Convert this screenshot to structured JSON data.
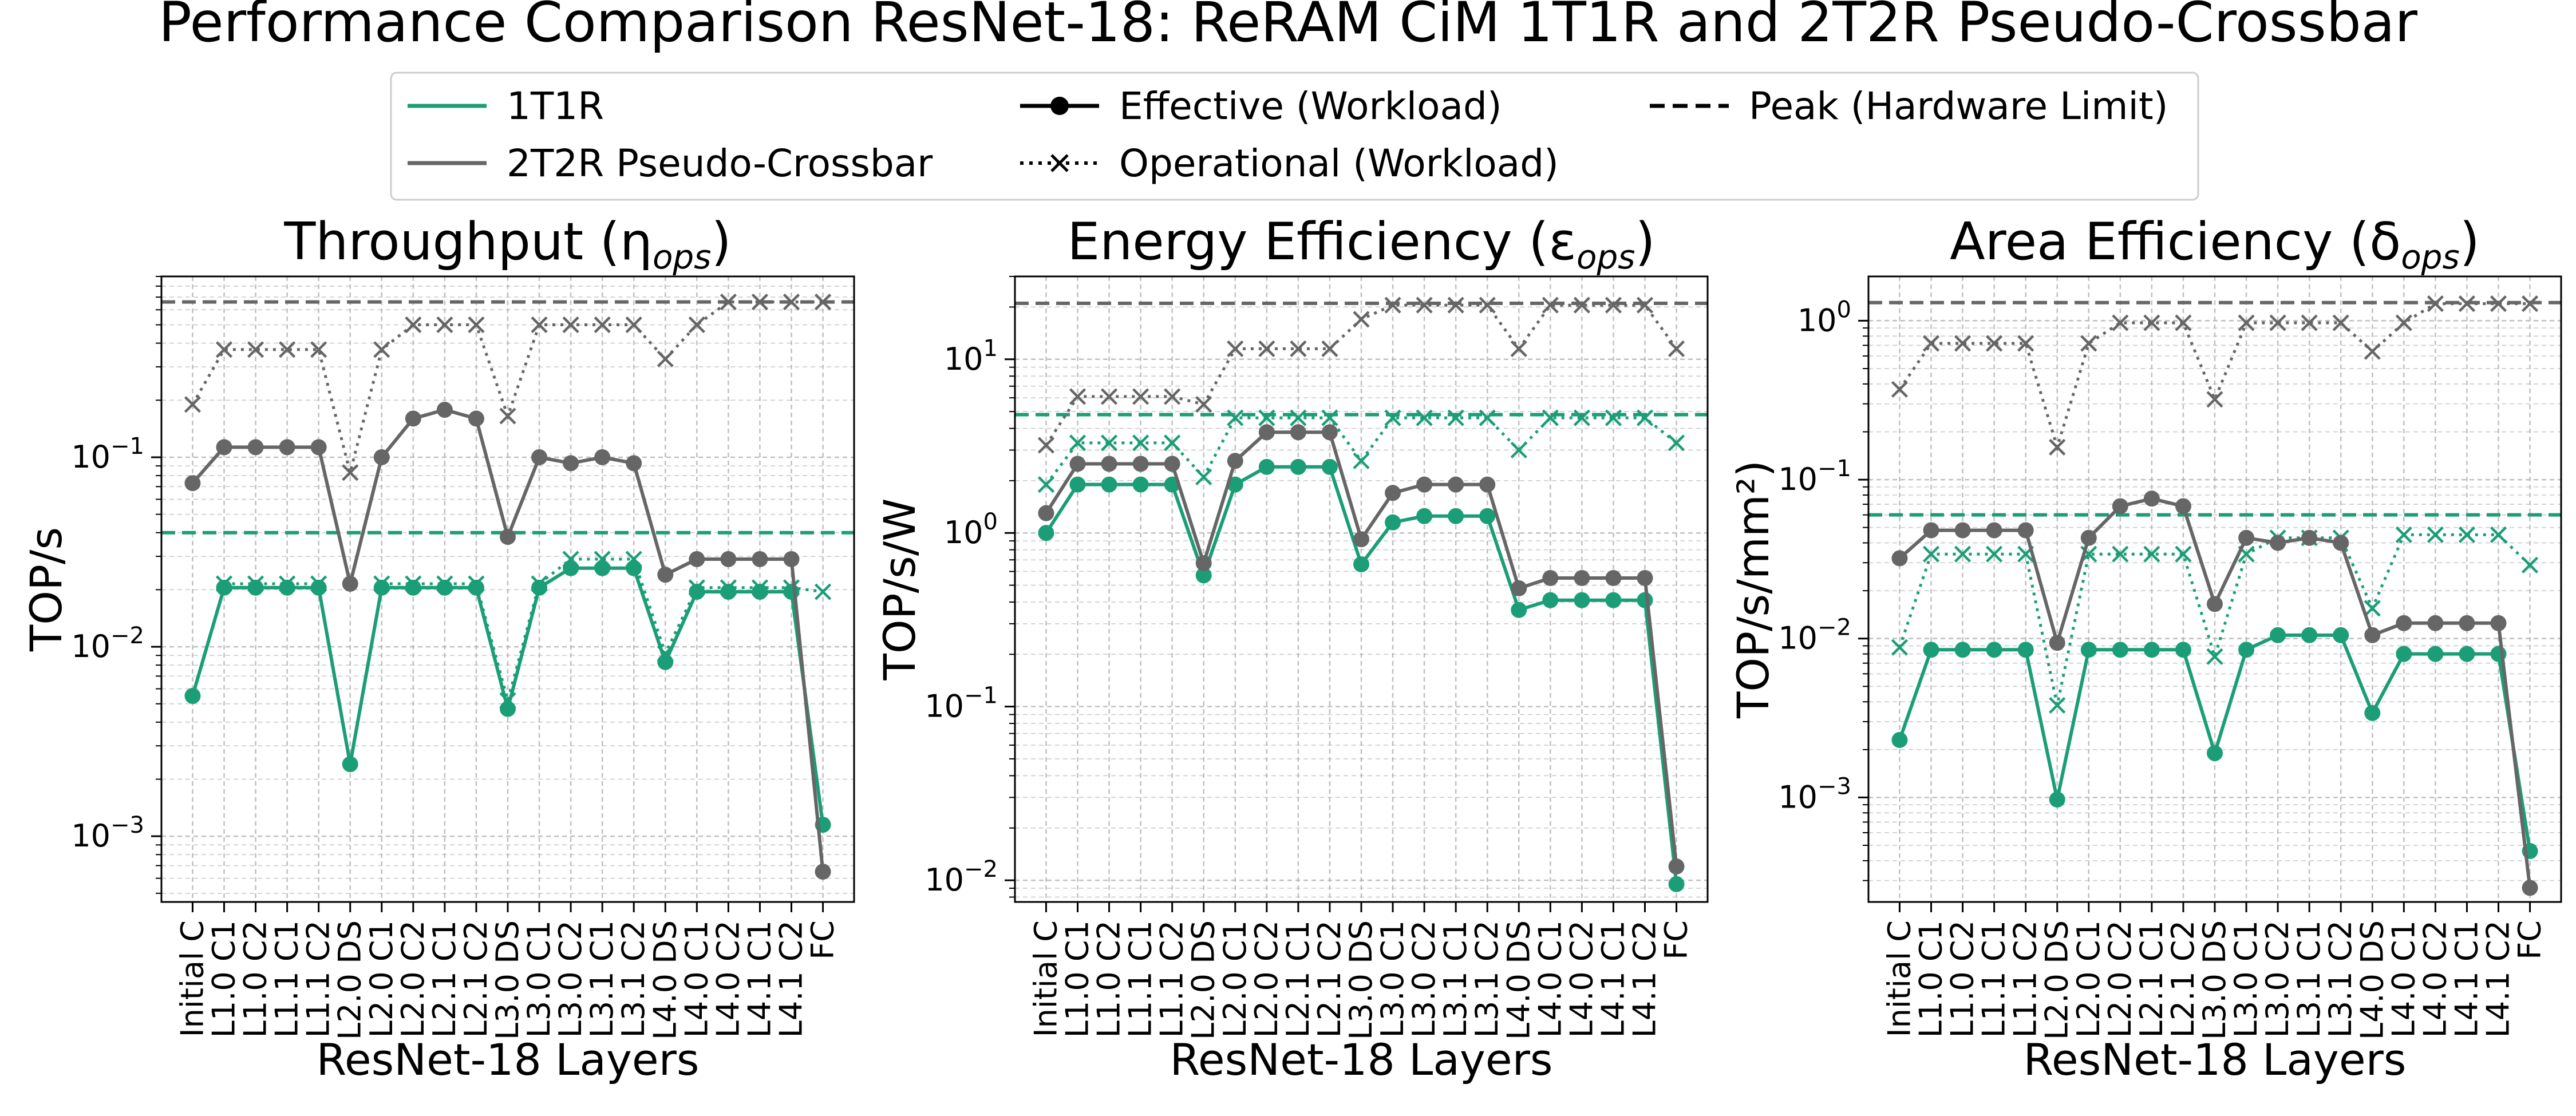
{
  "title": "Performance Comparison ResNet-18: ReRAM CiM 1T1R and 2T2R Pseudo-Crossbar",
  "colors": {
    "t1r": "#1b9e77",
    "t2r": "#666666",
    "key": "#000000"
  },
  "legend": {
    "items": [
      {
        "label": "1T1R",
        "style": "line",
        "color": "#1b9e77"
      },
      {
        "label": "2T2R Pseudo-Crossbar",
        "style": "line",
        "color": "#666666"
      },
      {
        "label": "Effective (Workload)",
        "style": "solid-dot",
        "color": "#000000"
      },
      {
        "label": "Operational (Workload)",
        "style": "dotted-x",
        "color": "#000000"
      },
      {
        "label": "Peak (Hardware Limit)",
        "style": "dashed",
        "color": "#000000"
      }
    ]
  },
  "chart_data": [
    {
      "type": "line",
      "title": "Throughput (η",
      "title_sub": "ops",
      "title_close": ")",
      "xlabel": "ResNet-18 Layers",
      "ylabel": "TOP/s",
      "yscale": "log",
      "ylim": [
        0.00045,
        0.9
      ],
      "yticks": [
        0.001,
        0.01,
        0.1
      ],
      "ytick_labels": [
        [
          "10",
          "−3"
        ],
        [
          "10",
          "−2"
        ],
        [
          "10",
          "−1"
        ]
      ],
      "grid": true,
      "categories": [
        "Initial C",
        "L1.0 C1",
        "L1.0 C2",
        "L1.1 C1",
        "L1.1 C2",
        "L2.0 DS",
        "L2.0 C1",
        "L2.0 C2",
        "L2.1 C1",
        "L2.1 C2",
        "L3.0 DS",
        "L3.0 C1",
        "L3.0 C2",
        "L3.1 C1",
        "L3.1 C2",
        "L4.0 DS",
        "L4.0 C1",
        "L4.0 C2",
        "L4.1 C1",
        "L4.1 C2",
        "FC"
      ],
      "series": [
        {
          "name": "1T1R",
          "kind": "effective",
          "values": [
            0.0055,
            0.0205,
            0.0205,
            0.0205,
            0.0205,
            0.0024,
            0.0205,
            0.0205,
            0.0205,
            0.0205,
            0.0047,
            0.0205,
            0.026,
            0.026,
            0.026,
            0.0083,
            0.0195,
            0.0195,
            0.0195,
            0.0195,
            0.00115
          ]
        },
        {
          "name": "1T1R",
          "kind": "operational",
          "values": [
            null,
            0.0215,
            0.0215,
            0.0215,
            0.0215,
            null,
            0.0215,
            0.0215,
            0.0215,
            0.0215,
            0.0052,
            0.0215,
            0.029,
            0.029,
            0.029,
            0.0092,
            0.0205,
            0.0205,
            0.0205,
            0.0205,
            0.0195
          ]
        },
        {
          "name": "1T1R",
          "kind": "peak",
          "value": 0.04
        },
        {
          "name": "2T2R Pseudo-Crossbar",
          "kind": "effective",
          "values": [
            0.073,
            0.113,
            0.113,
            0.113,
            0.113,
            0.0215,
            0.1,
            0.16,
            0.178,
            0.16,
            0.038,
            0.1,
            0.093,
            0.1,
            0.093,
            0.024,
            0.029,
            0.029,
            0.029,
            0.029,
            0.00065
          ]
        },
        {
          "name": "2T2R Pseudo-Crossbar",
          "kind": "operational",
          "values": [
            0.19,
            0.37,
            0.37,
            0.37,
            0.37,
            0.083,
            0.37,
            0.5,
            0.5,
            0.5,
            0.165,
            0.5,
            0.5,
            0.5,
            0.5,
            0.33,
            0.5,
            0.66,
            0.66,
            0.66,
            0.66
          ]
        },
        {
          "name": "2T2R Pseudo-Crossbar",
          "kind": "peak",
          "value": 0.66
        }
      ]
    },
    {
      "type": "line",
      "title": "Energy Efficiency (ε",
      "title_sub": "ops",
      "title_close": ")",
      "xlabel": "ResNet-18 Layers",
      "ylabel": "TOP/s/W",
      "yscale": "log",
      "ylim": [
        0.0075,
        30
      ],
      "yticks": [
        0.01,
        0.1,
        1,
        10
      ],
      "ytick_labels": [
        [
          "10",
          "−2"
        ],
        [
          "10",
          "−1"
        ],
        [
          "10",
          "0"
        ],
        [
          "10",
          "1"
        ]
      ],
      "grid": true,
      "categories": [
        "Initial C",
        "L1.0 C1",
        "L1.0 C2",
        "L1.1 C1",
        "L1.1 C2",
        "L2.0 DS",
        "L2.0 C1",
        "L2.0 C2",
        "L2.1 C1",
        "L2.1 C2",
        "L3.0 DS",
        "L3.0 C1",
        "L3.0 C2",
        "L3.1 C1",
        "L3.1 C2",
        "L4.0 DS",
        "L4.0 C1",
        "L4.0 C2",
        "L4.1 C1",
        "L4.1 C2",
        "FC"
      ],
      "series": [
        {
          "name": "1T1R",
          "kind": "effective",
          "values": [
            1.0,
            1.9,
            1.9,
            1.9,
            1.9,
            0.57,
            1.9,
            2.4,
            2.4,
            2.4,
            0.66,
            1.15,
            1.25,
            1.25,
            1.25,
            0.36,
            0.41,
            0.41,
            0.41,
            0.41,
            0.0095
          ]
        },
        {
          "name": "1T1R",
          "kind": "operational",
          "values": [
            1.9,
            3.3,
            3.3,
            3.3,
            3.3,
            2.1,
            4.6,
            4.6,
            4.6,
            4.6,
            2.6,
            4.6,
            4.6,
            4.6,
            4.6,
            3.0,
            4.6,
            4.6,
            4.6,
            4.6,
            3.3
          ]
        },
        {
          "name": "1T1R",
          "kind": "peak",
          "value": 4.8
        },
        {
          "name": "2T2R Pseudo-Crossbar",
          "kind": "effective",
          "values": [
            1.3,
            2.5,
            2.5,
            2.5,
            2.5,
            0.67,
            2.6,
            3.8,
            3.8,
            3.8,
            0.92,
            1.7,
            1.9,
            1.9,
            1.9,
            0.48,
            0.55,
            0.55,
            0.55,
            0.55,
            0.012
          ]
        },
        {
          "name": "2T2R Pseudo-Crossbar",
          "kind": "operational",
          "values": [
            3.2,
            6.1,
            6.1,
            6.1,
            6.1,
            5.5,
            11.5,
            11.5,
            11.5,
            11.5,
            17,
            20.5,
            20.5,
            20.5,
            20.5,
            11.5,
            20.5,
            20.5,
            20.5,
            20.5,
            11.5
          ]
        },
        {
          "name": "2T2R Pseudo-Crossbar",
          "kind": "peak",
          "value": 21
        }
      ]
    },
    {
      "type": "line",
      "title": "Area Efficiency (δ",
      "title_sub": "ops",
      "title_close": ")",
      "xlabel": "ResNet-18 Layers",
      "ylabel": "TOP/s/mm²)",
      "yscale": "log",
      "ylim": [
        0.00022,
        1.9
      ],
      "yticks": [
        0.001,
        0.01,
        0.1,
        1
      ],
      "ytick_labels": [
        [
          "10",
          "−3"
        ],
        [
          "10",
          "−2"
        ],
        [
          "10",
          "−1"
        ],
        [
          "10",
          "0"
        ]
      ],
      "grid": true,
      "categories": [
        "Initial C",
        "L1.0 C1",
        "L1.0 C2",
        "L1.1 C1",
        "L1.1 C2",
        "L2.0 DS",
        "L2.0 C1",
        "L2.0 C2",
        "L2.1 C1",
        "L2.1 C2",
        "L3.0 DS",
        "L3.0 C1",
        "L3.0 C2",
        "L3.1 C1",
        "L3.1 C2",
        "L4.0 DS",
        "L4.0 C1",
        "L4.0 C2",
        "L4.1 C1",
        "L4.1 C2",
        "FC"
      ],
      "series": [
        {
          "name": "1T1R",
          "kind": "effective",
          "values": [
            0.0023,
            0.0085,
            0.0085,
            0.0085,
            0.0085,
            0.00097,
            0.0085,
            0.0085,
            0.0085,
            0.0085,
            0.0019,
            0.0085,
            0.0105,
            0.0105,
            0.0105,
            0.0034,
            0.008,
            0.008,
            0.008,
            0.008,
            0.00046
          ]
        },
        {
          "name": "1T1R",
          "kind": "operational",
          "values": [
            0.0088,
            0.034,
            0.034,
            0.034,
            0.034,
            0.0038,
            0.034,
            0.034,
            0.034,
            0.034,
            0.0077,
            0.034,
            0.043,
            0.043,
            0.043,
            0.0155,
            0.045,
            0.045,
            0.045,
            0.045,
            0.029
          ]
        },
        {
          "name": "1T1R",
          "kind": "peak",
          "value": 0.06
        },
        {
          "name": "2T2R Pseudo-Crossbar",
          "kind": "effective",
          "values": [
            0.032,
            0.048,
            0.048,
            0.048,
            0.048,
            0.0094,
            0.043,
            0.068,
            0.076,
            0.068,
            0.0165,
            0.043,
            0.04,
            0.043,
            0.04,
            0.0105,
            0.0125,
            0.0125,
            0.0125,
            0.0125,
            0.00027
          ]
        },
        {
          "name": "2T2R Pseudo-Crossbar",
          "kind": "operational",
          "values": [
            0.37,
            0.72,
            0.72,
            0.72,
            0.72,
            0.16,
            0.72,
            0.97,
            0.97,
            0.97,
            0.32,
            0.97,
            0.97,
            0.97,
            0.97,
            0.64,
            0.97,
            1.28,
            1.28,
            1.28,
            1.28
          ]
        },
        {
          "name": "2T2R Pseudo-Crossbar",
          "kind": "peak",
          "value": 1.3
        }
      ]
    }
  ]
}
